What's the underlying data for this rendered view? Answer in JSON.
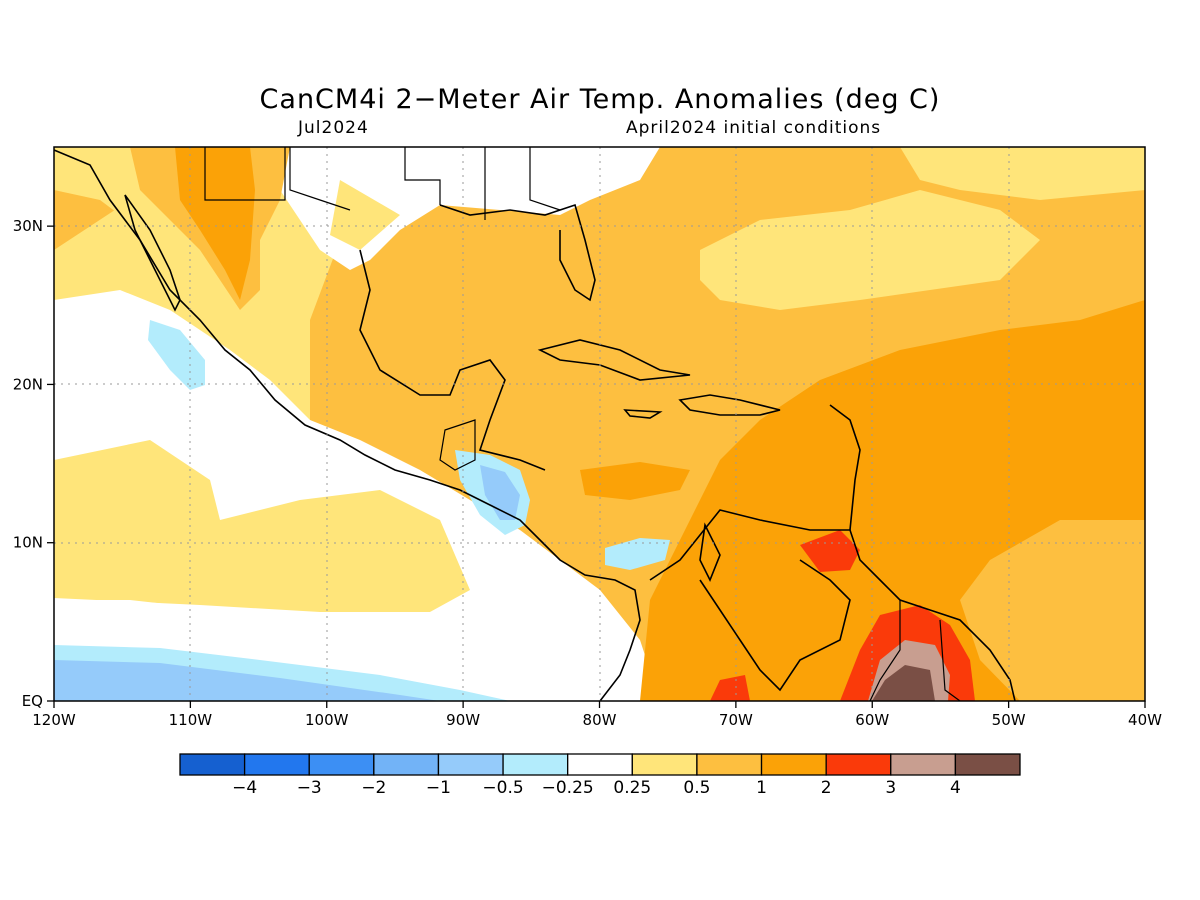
{
  "title": "CanCM4i 2−Meter Air Temp. Anomalies (deg C)",
  "subtitle_left": "Jul2024",
  "subtitle_right": "April2024 initial conditions",
  "map": {
    "lon_range": [
      -120,
      -40
    ],
    "lat_range": [
      0,
      35
    ],
    "x_ticks": [
      {
        "lon": -120,
        "label": "120W"
      },
      {
        "lon": -110,
        "label": "110W"
      },
      {
        "lon": -100,
        "label": "100W"
      },
      {
        "lon": -90,
        "label": "90W"
      },
      {
        "lon": -80,
        "label": "80W"
      },
      {
        "lon": -70,
        "label": "70W"
      },
      {
        "lon": -60,
        "label": "60W"
      },
      {
        "lon": -50,
        "label": "50W"
      },
      {
        "lon": -40,
        "label": "40W"
      }
    ],
    "y_ticks": [
      {
        "lat": 0,
        "label": "EQ"
      },
      {
        "lat": 10,
        "label": "10N"
      },
      {
        "lat": 20,
        "label": "20N"
      },
      {
        "lat": 30,
        "label": "30N"
      }
    ],
    "gridlines": "dotted"
  },
  "colorbar": {
    "colors": [
      "#1560d0",
      "#2277ee",
      "#3c8ff4",
      "#72b3f7",
      "#95cbfa",
      "#b3ecfc",
      "#ffffff",
      "#ffe57a",
      "#fdbf40",
      "#fba207",
      "#fa3a0a",
      "#c89e90",
      "#7a4f45"
    ],
    "labels": [
      "−4",
      "−3",
      "−2",
      "−1",
      "−0.5",
      "−0.25",
      "0.25",
      "0.5",
      "1",
      "2",
      "3",
      "4"
    ]
  }
}
